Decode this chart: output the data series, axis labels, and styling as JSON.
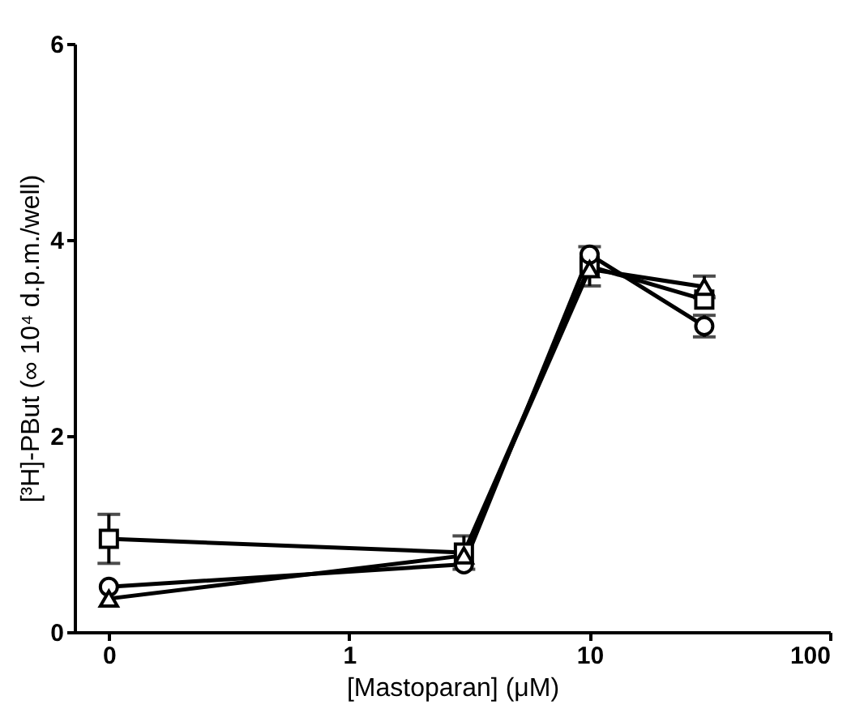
{
  "chart_data": {
    "type": "line",
    "xlabel": "[Mastoparan] (μM)",
    "ylabel": "[³H]-PBut (∞ 10⁴ d.p.m./well)",
    "x": [
      0.1,
      3,
      10,
      30
    ],
    "series": [
      {
        "color": "#000000",
        "marker": "square",
        "values": [
          0.95,
          0.81,
          3.73,
          3.39
        ],
        "errors": [
          0.25,
          0.17,
          0.2,
          null
        ]
      },
      {
        "color": "#000000",
        "marker": "circle",
        "values": [
          0.46,
          0.69,
          3.85,
          3.12
        ],
        "errors": [
          null,
          null,
          null,
          0.11
        ]
      },
      {
        "color": "#000000",
        "marker": "triangle",
        "values": [
          0.34,
          0.78,
          3.7,
          3.52
        ],
        "errors": [
          null,
          null,
          null,
          0.11
        ]
      }
    ],
    "log": "x",
    "xlim": [
      0.072,
      100
    ],
    "xticks": [
      {
        "value": 0.1,
        "label": "0"
      },
      1,
      10,
      100
    ],
    "ylim": [
      0,
      6
    ],
    "yticks": [
      0,
      2,
      4,
      6
    ],
    "grid": false,
    "legend": false,
    "line_style": "solid"
  }
}
